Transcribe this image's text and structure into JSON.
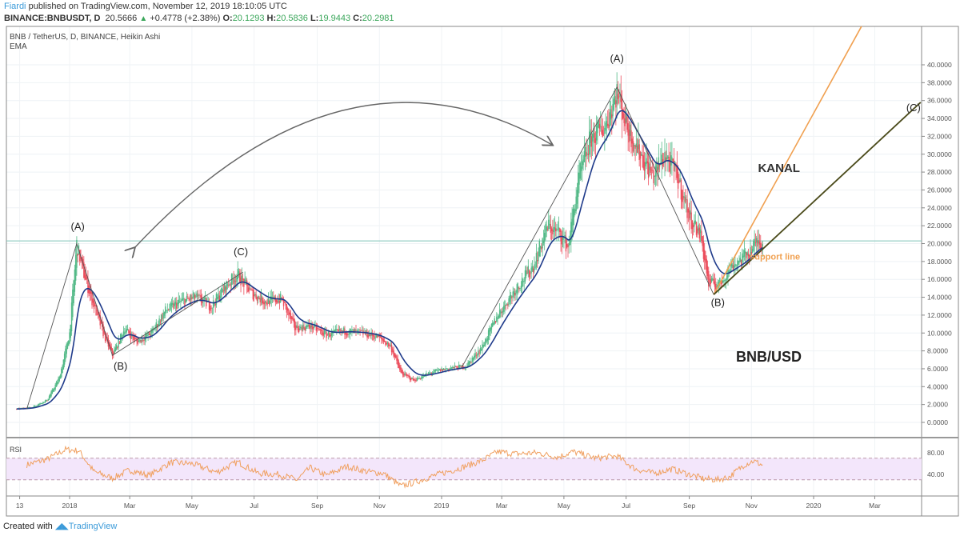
{
  "header": {
    "author": "Fiardi",
    "published": "published on TradingView.com, November 12, 2019 18:10:05 UTC",
    "symbol": "BINANCE:BNBUSDT, D",
    "last": "20.5666",
    "change": "+0.4778 (+2.38%)",
    "o_label": "O:",
    "o": "20.1293",
    "h_label": "H:",
    "h": "20.5836",
    "l_label": "L:",
    "l": "19.9443",
    "c_label": "C:",
    "c": "20.2981"
  },
  "legend": {
    "title": "BNB / TetherUS, D, BINANCE, Heikin Ashi",
    "indicator": "EMA",
    "rsi": "RSI"
  },
  "footer": {
    "created": "Created with",
    "brand": "TradingView"
  },
  "colors": {
    "up": "#53b987",
    "down": "#eb4d5c",
    "ema": "#1e3a8a",
    "rsi": "#f0a060",
    "rsi_band": "#f3e6fb",
    "kanal": "#f0a050",
    "support": "#4a4a1a",
    "wave": "#555555"
  },
  "chart_data": {
    "type": "candlestick",
    "title": "BNB / TetherUS, D, BINANCE, Heikin Ashi",
    "ylim": [
      0,
      40
    ],
    "y_ticks": [
      "0.0000",
      "2.0000",
      "4.0000",
      "6.0000",
      "8.0000",
      "10.0000",
      "12.0000",
      "14.0000",
      "16.0000",
      "18.0000",
      "20.0000",
      "22.0000",
      "24.0000",
      "26.0000",
      "28.0000",
      "30.0000",
      "32.0000",
      "34.0000",
      "36.0000",
      "38.0000",
      "40.0000"
    ],
    "x_ticks": [
      {
        "label": "13",
        "date": "2017-11-13"
      },
      {
        "label": "2018",
        "date": "2018-01-01"
      },
      {
        "label": "Mar",
        "date": "2018-03-01"
      },
      {
        "label": "May",
        "date": "2018-05-01"
      },
      {
        "label": "Jul",
        "date": "2018-07-01"
      },
      {
        "label": "Sep",
        "date": "2018-09-01"
      },
      {
        "label": "Nov",
        "date": "2018-11-01"
      },
      {
        "label": "2019",
        "date": "2019-01-01"
      },
      {
        "label": "Mar",
        "date": "2019-03-01"
      },
      {
        "label": "May",
        "date": "2019-05-01"
      },
      {
        "label": "Jul",
        "date": "2019-07-01"
      },
      {
        "label": "Sep",
        "date": "2019-09-01"
      },
      {
        "label": "Nov",
        "date": "2019-11-01"
      },
      {
        "label": "2020",
        "date": "2020-01-01"
      },
      {
        "label": "Mar",
        "date": "2020-03-01"
      }
    ],
    "current_price": 20.3,
    "closes": [
      [
        "2017-11-10",
        1.5
      ],
      [
        "2017-11-25",
        1.7
      ],
      [
        "2017-12-10",
        2.5
      ],
      [
        "2017-12-22",
        5
      ],
      [
        "2018-01-01",
        10
      ],
      [
        "2018-01-08",
        20
      ],
      [
        "2018-01-14",
        17
      ],
      [
        "2018-01-22",
        14
      ],
      [
        "2018-02-03",
        10
      ],
      [
        "2018-02-12",
        7.5
      ],
      [
        "2018-02-24",
        10.5
      ],
      [
        "2018-03-08",
        9
      ],
      [
        "2018-03-22",
        10
      ],
      [
        "2018-04-05",
        12.5
      ],
      [
        "2018-04-20",
        13.5
      ],
      [
        "2018-05-05",
        14
      ],
      [
        "2018-05-20",
        13
      ],
      [
        "2018-06-05",
        15.5
      ],
      [
        "2018-06-15",
        16.5
      ],
      [
        "2018-06-28",
        14.5
      ],
      [
        "2018-07-12",
        13.5
      ],
      [
        "2018-07-28",
        13.8
      ],
      [
        "2018-08-10",
        10.5
      ],
      [
        "2018-08-25",
        10.8
      ],
      [
        "2018-09-10",
        9.8
      ],
      [
        "2018-09-28",
        10.2
      ],
      [
        "2018-10-15",
        10
      ],
      [
        "2018-10-30",
        9.6
      ],
      [
        "2018-11-12",
        8.5
      ],
      [
        "2018-11-22",
        5.5
      ],
      [
        "2018-12-05",
        4.7
      ],
      [
        "2018-12-20",
        5.5
      ],
      [
        "2019-01-05",
        6
      ],
      [
        "2019-01-25",
        6.3
      ],
      [
        "2019-02-10",
        8.5
      ],
      [
        "2019-02-25",
        12
      ],
      [
        "2019-03-15",
        15
      ],
      [
        "2019-04-01",
        17.5
      ],
      [
        "2019-04-15",
        22
      ],
      [
        "2019-04-28",
        21
      ],
      [
        "2019-05-05",
        19.5
      ],
      [
        "2019-05-15",
        27
      ],
      [
        "2019-05-28",
        32
      ],
      [
        "2019-06-10",
        33
      ],
      [
        "2019-06-22",
        37
      ],
      [
        "2019-07-02",
        33
      ],
      [
        "2019-07-15",
        30
      ],
      [
        "2019-07-28",
        27.5
      ],
      [
        "2019-08-08",
        30
      ],
      [
        "2019-08-20",
        27.5
      ],
      [
        "2019-09-01",
        23
      ],
      [
        "2019-09-12",
        21
      ],
      [
        "2019-09-20",
        15.5
      ],
      [
        "2019-10-01",
        15.5
      ],
      [
        "2019-10-12",
        17.5
      ],
      [
        "2019-10-25",
        18.5
      ],
      [
        "2019-11-05",
        20
      ],
      [
        "2019-11-12",
        20.3
      ]
    ],
    "rsi": {
      "ylim": [
        10,
        95
      ],
      "y_ticks": [
        "80.00",
        "40.00"
      ],
      "upper_band": 70,
      "lower_band": 30,
      "values": [
        [
          "2017-11-20",
          58
        ],
        [
          "2017-12-10",
          68
        ],
        [
          "2017-12-28",
          86
        ],
        [
          "2018-01-10",
          84
        ],
        [
          "2018-01-25",
          45
        ],
        [
          "2018-02-12",
          33
        ],
        [
          "2018-03-01",
          48
        ],
        [
          "2018-03-20",
          38
        ],
        [
          "2018-04-10",
          62
        ],
        [
          "2018-05-01",
          60
        ],
        [
          "2018-05-25",
          44
        ],
        [
          "2018-06-15",
          63
        ],
        [
          "2018-07-05",
          42
        ],
        [
          "2018-07-25",
          40
        ],
        [
          "2018-08-12",
          30
        ],
        [
          "2018-08-25",
          52
        ],
        [
          "2018-09-10",
          38
        ],
        [
          "2018-09-30",
          55
        ],
        [
          "2018-10-20",
          45
        ],
        [
          "2018-11-05",
          42
        ],
        [
          "2018-11-22",
          18
        ],
        [
          "2018-12-05",
          25
        ],
        [
          "2018-12-25",
          38
        ],
        [
          "2019-01-20",
          52
        ],
        [
          "2019-02-10",
          66
        ],
        [
          "2019-02-25",
          82
        ],
        [
          "2019-03-15",
          78
        ],
        [
          "2019-04-05",
          80
        ],
        [
          "2019-04-25",
          72
        ],
        [
          "2019-05-10",
          82
        ],
        [
          "2019-06-01",
          70
        ],
        [
          "2019-06-22",
          74
        ],
        [
          "2019-07-10",
          50
        ],
        [
          "2019-07-28",
          42
        ],
        [
          "2019-08-15",
          50
        ],
        [
          "2019-09-01",
          40
        ],
        [
          "2019-09-15",
          32
        ],
        [
          "2019-09-28",
          30
        ],
        [
          "2019-10-10",
          35
        ],
        [
          "2019-10-25",
          58
        ],
        [
          "2019-11-03",
          65
        ],
        [
          "2019-11-12",
          57
        ]
      ]
    },
    "drawings": [
      {
        "name": "wave-2018",
        "points": [
          [
            "2017-11-20",
            1.5
          ],
          [
            "2018-01-08",
            20
          ],
          [
            "2018-02-12",
            7.5
          ],
          [
            "2018-06-20",
            16.8
          ]
        ]
      },
      {
        "name": "wave-2019",
        "points": [
          [
            "2019-01-20",
            6
          ],
          [
            "2019-06-22",
            37.5
          ],
          [
            "2019-09-25",
            14.3
          ]
        ]
      },
      {
        "name": "kanal-line",
        "points": [
          [
            "2019-09-25",
            14.3
          ],
          [
            "2020-02-17",
            44.3
          ]
        ]
      },
      {
        "name": "support-line",
        "points": [
          [
            "2019-09-25",
            14.3
          ],
          [
            "2020-04-15",
            35.8
          ]
        ]
      }
    ],
    "annotations": [
      {
        "text": "(A)",
        "date": "2018-01-09",
        "price": 21.5,
        "kind": "wave"
      },
      {
        "text": "(B)",
        "date": "2018-02-20",
        "price": 5.9,
        "kind": "wave"
      },
      {
        "text": "(C)",
        "date": "2018-06-18",
        "price": 18.7,
        "kind": "wave"
      },
      {
        "text": "(A)",
        "date": "2019-06-22",
        "price": 40.3,
        "kind": "wave"
      },
      {
        "text": "(B)",
        "date": "2019-09-29",
        "price": 13.0,
        "kind": "wave"
      },
      {
        "text": "(C)",
        "date": "2020-04-08",
        "price": 34.8,
        "kind": "wave"
      },
      {
        "text": "KANAL",
        "date": "2019-11-28",
        "price": 28.0,
        "kind": "big"
      },
      {
        "text": "support line",
        "date": "2019-11-24",
        "price": 18.2,
        "kind": "orange"
      },
      {
        "text": "BNB/USD",
        "date": "2019-11-18",
        "price": 6.8,
        "kind": "huge"
      }
    ]
  }
}
